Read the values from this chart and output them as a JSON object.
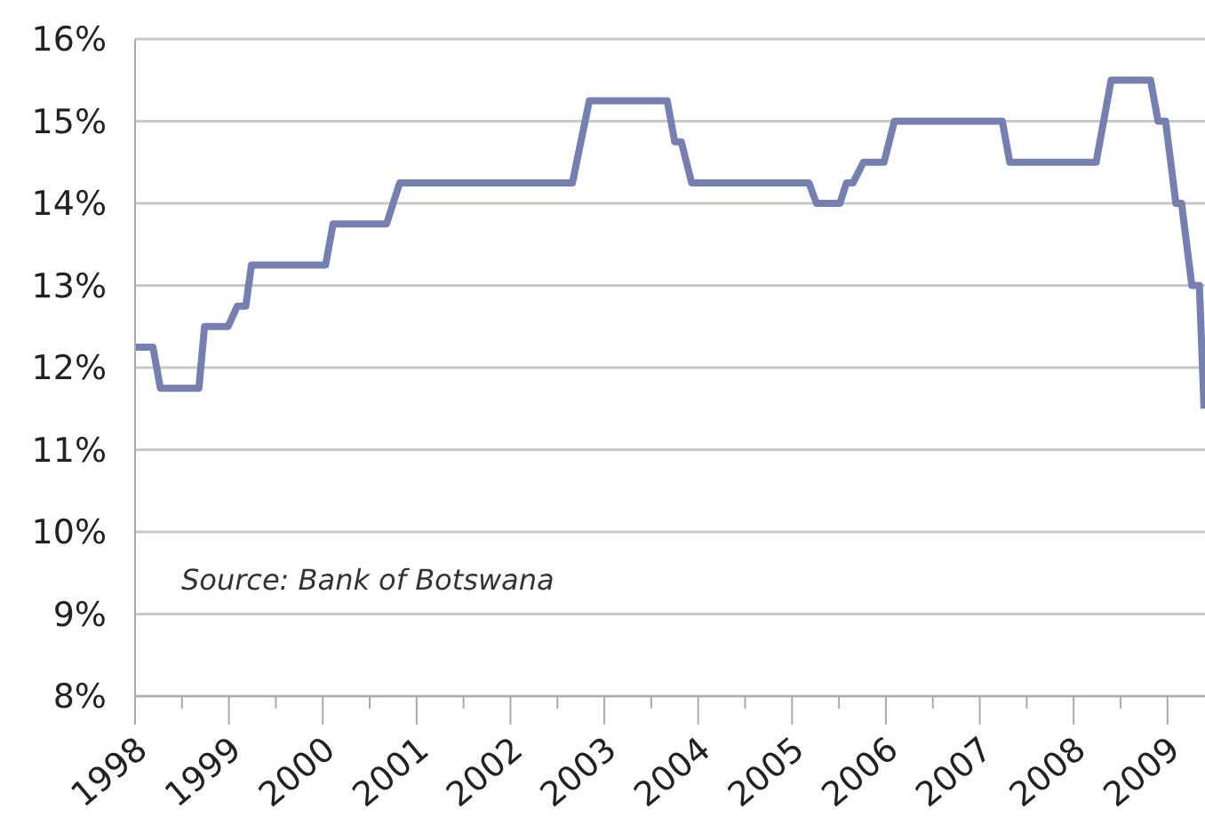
{
  "chart_data": {
    "type": "line",
    "annotations": [
      "Source: Bank of Botswana"
    ],
    "x": [
      1998.0,
      1998.19,
      1998.27,
      1998.68,
      1998.74,
      1998.99,
      1999.09,
      1999.18,
      1999.24,
      2000.03,
      2000.11,
      2000.68,
      2000.82,
      2002.66,
      2002.84,
      2003.67,
      2003.75,
      2003.82,
      2003.93,
      2005.18,
      2005.26,
      2005.51,
      2005.58,
      2005.65,
      2005.76,
      2005.98,
      2006.09,
      2007.24,
      2007.32,
      2008.24,
      2008.4,
      2008.82,
      2008.9,
      2008.98,
      2009.09,
      2009.15,
      2009.26,
      2009.34,
      2009.39
    ],
    "series": [
      {
        "color": "#7680b0",
        "values": [
          12.25,
          12.25,
          11.75,
          11.75,
          12.5,
          12.5,
          12.75,
          12.75,
          13.25,
          13.25,
          13.75,
          13.75,
          14.25,
          14.25,
          15.25,
          15.25,
          14.75,
          14.75,
          14.25,
          14.25,
          14.0,
          14.0,
          14.25,
          14.25,
          14.5,
          14.5,
          15.0,
          15.0,
          14.5,
          14.5,
          15.5,
          15.5,
          15.0,
          15.0,
          14.0,
          14.0,
          13.0,
          13.0,
          11.5
        ]
      }
    ],
    "xlim": [
      1998,
      2009.4
    ],
    "xticks": [
      1998,
      {
        "value": 1998.5,
        "label": null
      },
      1999,
      {
        "value": 1999.5,
        "label": null
      },
      2000,
      {
        "value": 2000.5,
        "label": null
      },
      2001,
      {
        "value": 2001.5,
        "label": null
      },
      2002,
      {
        "value": 2002.5,
        "label": null
      },
      2003,
      {
        "value": 2003.5,
        "label": null
      },
      2004,
      {
        "value": 2004.5,
        "label": null
      },
      2005,
      {
        "value": 2005.5,
        "label": null
      },
      2006,
      {
        "value": 2006.5,
        "label": null
      },
      2007,
      {
        "value": 2007.5,
        "label": null
      },
      2008,
      {
        "value": 2008.5,
        "label": null
      },
      2009
    ],
    "ylim": [
      8,
      16
    ],
    "yticks": [
      {
        "value": 8,
        "label": "8%"
      },
      {
        "value": 9,
        "label": "9%"
      },
      {
        "value": 10,
        "label": "10%"
      },
      {
        "value": 11,
        "label": "11%"
      },
      {
        "value": 12,
        "label": "12%"
      },
      {
        "value": 13,
        "label": "13%"
      },
      {
        "value": 14,
        "label": "14%"
      },
      {
        "value": 15,
        "label": "15%"
      },
      {
        "value": 16,
        "label": "16%"
      }
    ],
    "grid": "y",
    "marker": "none",
    "line_style": "solid"
  }
}
